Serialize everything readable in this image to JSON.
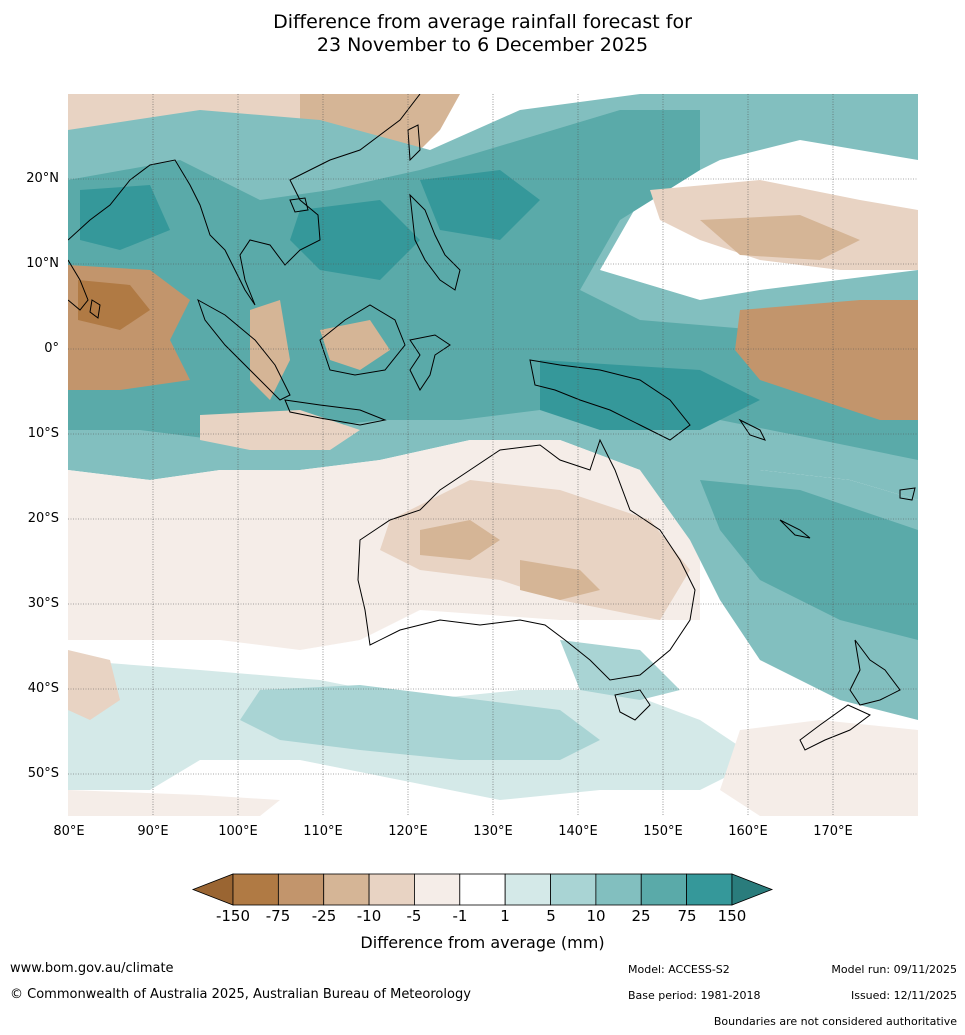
{
  "title_line1": "Difference from average rainfall forecast for",
  "title_line2": "23 November to 6 December 2025",
  "lat_labels": [
    "20°N",
    "10°N",
    "0°",
    "10°S",
    "20°S",
    "30°S",
    "40°S",
    "50°S"
  ],
  "lon_labels": [
    "80°E",
    "90°E",
    "100°E",
    "110°E",
    "120°E",
    "130°E",
    "140°E",
    "150°E",
    "160°E",
    "170°E"
  ],
  "colorbar": {
    "labels": [
      "-150",
      "-75",
      "-25",
      "-10",
      "-5",
      "-1",
      "1",
      "5",
      "10",
      "25",
      "75",
      "150"
    ],
    "colors": [
      "#9a6532",
      "#b07a44",
      "#c2956c",
      "#d5b596",
      "#e8d3c3",
      "#f5ede8",
      "#ffffff",
      "#d4e9e8",
      "#a9d4d4",
      "#82bfbf",
      "#5aaaa9",
      "#35989a",
      "#2a7c7c"
    ],
    "title": "Difference from average (mm)"
  },
  "footer": {
    "url": "www.bom.gov.au/climate",
    "copyright": "© Commonwealth of Australia 2025, Australian Bureau of Meteorology",
    "model": "Model: ACCESS-S2",
    "base_period": "Base period: 1981-2018",
    "model_run": "Model run: 09/11/2025",
    "issued": "Issued: 12/11/2025",
    "boundaries": "Boundaries are not considered authoritative"
  }
}
